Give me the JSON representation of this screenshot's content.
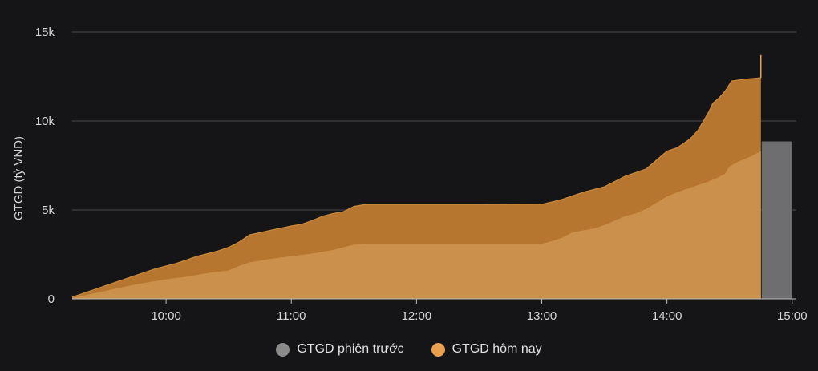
{
  "chart_data": {
    "type": "area",
    "ylabel": "GTGD (tỷ VND)",
    "ylim": [
      0,
      15000
    ],
    "yticks": [
      {
        "value": 0,
        "label": "0"
      },
      {
        "value": 5000,
        "label": "5k"
      },
      {
        "value": 10000,
        "label": "10k"
      },
      {
        "value": 15000,
        "label": "15k"
      }
    ],
    "xlim": [
      "09:15",
      "15:02"
    ],
    "xticks": [
      "10:00",
      "11:00",
      "12:00",
      "13:00",
      "14:00",
      "15:00"
    ],
    "grid": true,
    "legend_position": "bottom",
    "legend": [
      {
        "label": "GTGD phiên trước",
        "color": "#8a8a8a"
      },
      {
        "label": "GTGD hôm nay",
        "color": "#e9a04f"
      }
    ],
    "series": [
      {
        "name": "GTGD hôm nay",
        "color": "#b7762f",
        "points": [
          [
            "09:15",
            100
          ],
          [
            "09:25",
            500
          ],
          [
            "09:35",
            900
          ],
          [
            "09:45",
            1300
          ],
          [
            "09:55",
            1700
          ],
          [
            "10:00",
            1850
          ],
          [
            "10:05",
            2000
          ],
          [
            "10:10",
            2200
          ],
          [
            "10:15",
            2400
          ],
          [
            "10:25",
            2700
          ],
          [
            "10:30",
            2900
          ],
          [
            "10:35",
            3200
          ],
          [
            "10:40",
            3600
          ],
          [
            "10:50",
            3850
          ],
          [
            "11:00",
            4100
          ],
          [
            "11:05",
            4200
          ],
          [
            "11:10",
            4400
          ],
          [
            "11:15",
            4650
          ],
          [
            "11:20",
            4800
          ],
          [
            "11:25",
            4900
          ],
          [
            "11:30",
            5200
          ],
          [
            "11:35",
            5300
          ],
          [
            "12:00",
            5300
          ],
          [
            "12:30",
            5300
          ],
          [
            "13:00",
            5320
          ],
          [
            "13:05",
            5450
          ],
          [
            "13:10",
            5600
          ],
          [
            "13:15",
            5800
          ],
          [
            "13:20",
            6000
          ],
          [
            "13:25",
            6150
          ],
          [
            "13:30",
            6300
          ],
          [
            "13:35",
            6600
          ],
          [
            "13:40",
            6900
          ],
          [
            "13:45",
            7100
          ],
          [
            "13:50",
            7300
          ],
          [
            "13:55",
            7800
          ],
          [
            "14:00",
            8300
          ],
          [
            "14:05",
            8500
          ],
          [
            "14:10",
            8900
          ],
          [
            "14:12",
            9100
          ],
          [
            "14:15",
            9500
          ],
          [
            "14:20",
            10500
          ],
          [
            "14:22",
            11000
          ],
          [
            "14:25",
            11300
          ],
          [
            "14:28",
            11700
          ],
          [
            "14:31",
            12250
          ],
          [
            "14:36",
            12330
          ],
          [
            "14:40",
            12380
          ],
          [
            "14:45",
            12430
          ]
        ],
        "closing": {
          "time": "14:45",
          "value": 13700
        }
      },
      {
        "name": "GTGD phiên trước",
        "color": "#cb914c",
        "points": [
          [
            "09:15",
            50
          ],
          [
            "09:25",
            300
          ],
          [
            "09:35",
            550
          ],
          [
            "09:45",
            800
          ],
          [
            "09:55",
            1000
          ],
          [
            "10:00",
            1100
          ],
          [
            "10:10",
            1250
          ],
          [
            "10:20",
            1450
          ],
          [
            "10:30",
            1600
          ],
          [
            "10:35",
            1850
          ],
          [
            "10:40",
            2050
          ],
          [
            "10:50",
            2250
          ],
          [
            "11:00",
            2400
          ],
          [
            "11:10",
            2550
          ],
          [
            "11:15",
            2650
          ],
          [
            "11:20",
            2750
          ],
          [
            "11:25",
            2900
          ],
          [
            "11:30",
            3050
          ],
          [
            "11:35",
            3100
          ],
          [
            "12:00",
            3100
          ],
          [
            "12:30",
            3100
          ],
          [
            "13:00",
            3100
          ],
          [
            "13:05",
            3250
          ],
          [
            "13:10",
            3450
          ],
          [
            "13:15",
            3750
          ],
          [
            "13:20",
            3850
          ],
          [
            "13:25",
            3950
          ],
          [
            "13:30",
            4150
          ],
          [
            "13:35",
            4400
          ],
          [
            "13:40",
            4650
          ],
          [
            "13:45",
            4800
          ],
          [
            "13:50",
            5050
          ],
          [
            "13:55",
            5400
          ],
          [
            "14:00",
            5750
          ],
          [
            "14:05",
            6000
          ],
          [
            "14:10",
            6200
          ],
          [
            "14:15",
            6400
          ],
          [
            "14:20",
            6600
          ],
          [
            "14:25",
            6850
          ],
          [
            "14:28",
            7050
          ],
          [
            "14:30",
            7450
          ],
          [
            "14:35",
            7750
          ],
          [
            "14:40",
            8000
          ],
          [
            "14:45",
            8300
          ]
        ]
      }
    ],
    "prev_session_bar": {
      "name": "GTGD phiên trước",
      "start": "14:45",
      "end": "15:00",
      "value": 8850,
      "color": "#6e6e71"
    }
  }
}
